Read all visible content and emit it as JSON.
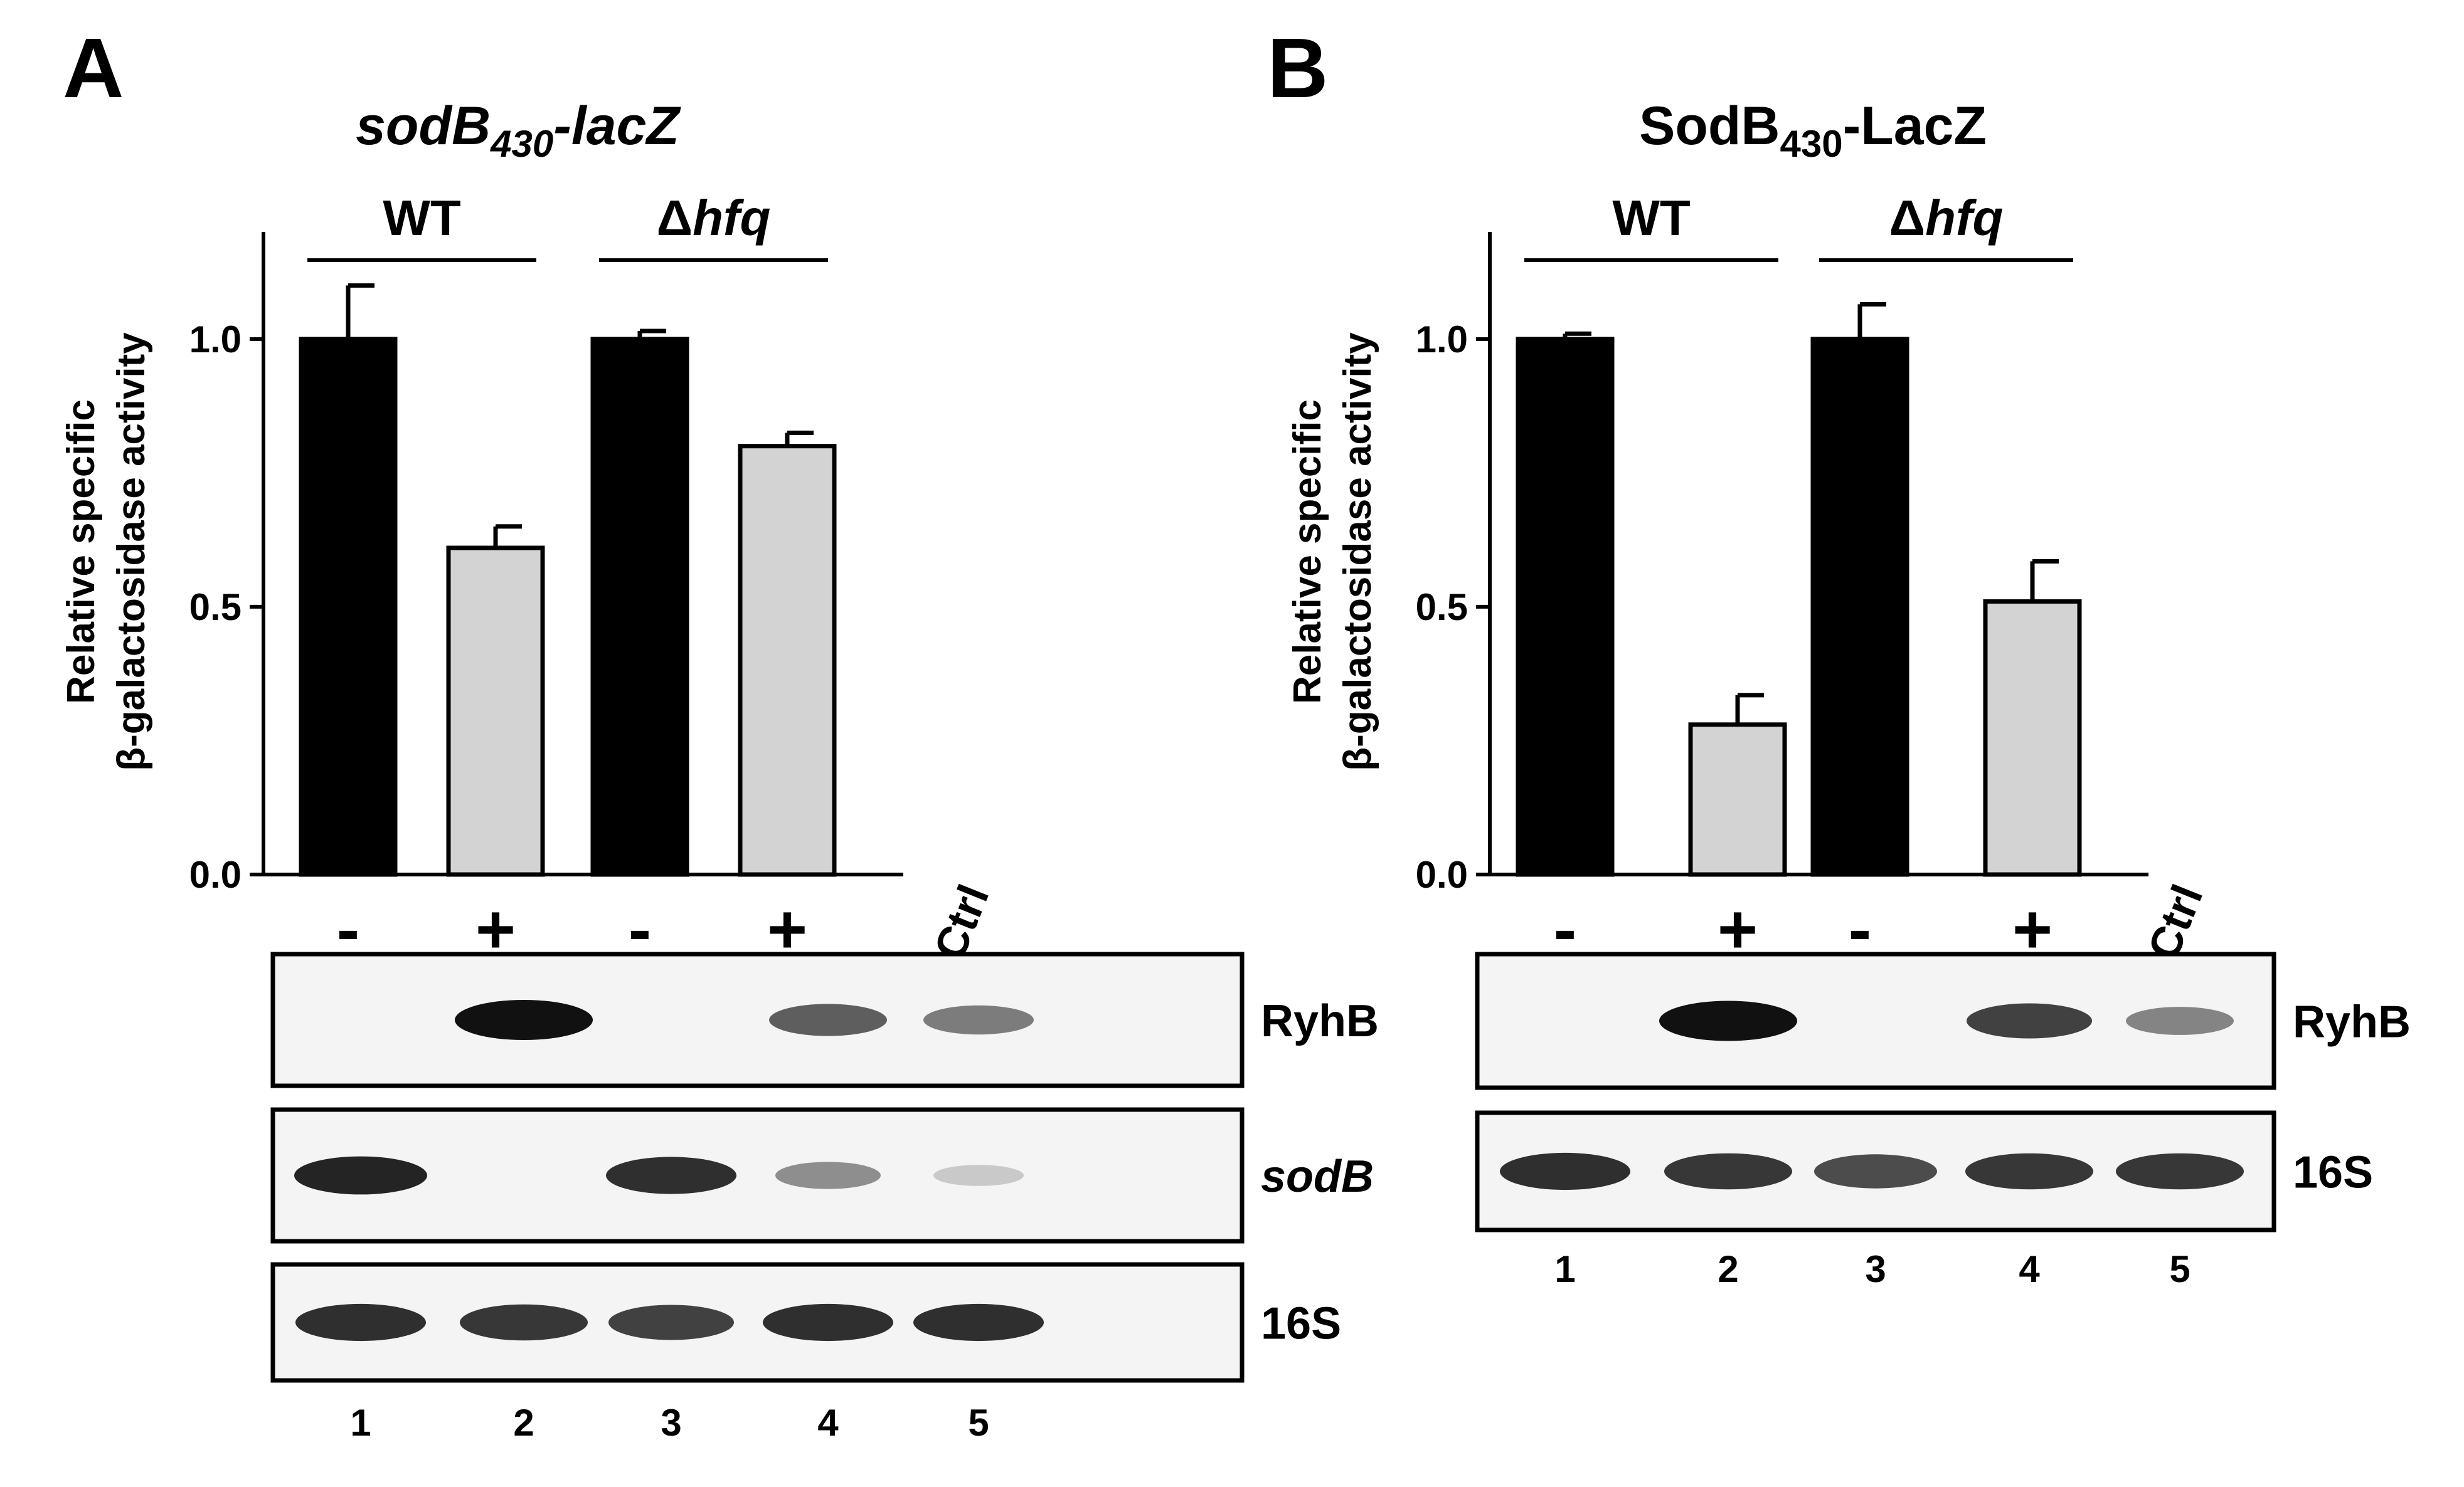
{
  "chart_data": [
    {
      "panel": "A",
      "type": "bar",
      "title": "sodB430-lacZ",
      "title_parts": {
        "main": "sodB",
        "sub": "430",
        "rest": "-lacZ",
        "italic": true
      },
      "ylabel_lines": [
        "Relative specific",
        "β-galactosidase activity"
      ],
      "ylim": [
        0,
        1.2
      ],
      "yticks": [
        "0.0",
        "0.5",
        "1.0"
      ],
      "groups": [
        {
          "label": "WT",
          "label_main": "WT",
          "label_italic": ""
        },
        {
          "label": "Δhfq",
          "label_main": "Δ",
          "label_italic": "hfq"
        }
      ],
      "categories": [
        "-",
        "+",
        "-",
        "+"
      ],
      "ctrl_label": "Ctrl",
      "values": [
        1.0,
        0.61,
        1.0,
        0.8
      ],
      "errors": [
        0.1,
        0.04,
        0.015,
        0.025
      ],
      "bar_colors": [
        "#000000",
        "#d3d3d3",
        "#000000",
        "#d3d3d3"
      ],
      "grid": false,
      "blots": [
        {
          "label": "RyhB",
          "italic": false,
          "intensities": [
            0,
            1.0,
            0,
            0.6,
            0.45
          ]
        },
        {
          "label": "sodB",
          "italic": true,
          "intensities": [
            0.9,
            0,
            0.85,
            0.35,
            0.05
          ]
        },
        {
          "label": "16S",
          "italic": false,
          "intensities": [
            0.85,
            0.8,
            0.75,
            0.85,
            0.85
          ]
        }
      ],
      "lanes": [
        "1",
        "2",
        "3",
        "4",
        "5"
      ]
    },
    {
      "panel": "B",
      "type": "bar",
      "title": "SodB430-LacZ",
      "title_parts": {
        "main": "SodB",
        "sub": "430",
        "rest": "-LacZ",
        "italic": false
      },
      "ylabel_lines": [
        "Relative specific",
        "β-galactosidase activity"
      ],
      "ylim": [
        0,
        1.2
      ],
      "yticks": [
        "0.0",
        "0.5",
        "1.0"
      ],
      "groups": [
        {
          "label": "WT",
          "label_main": "WT",
          "label_italic": ""
        },
        {
          "label": "Δhfq",
          "label_main": "Δ",
          "label_italic": "hfq"
        }
      ],
      "categories": [
        "-",
        "+",
        "-",
        "+"
      ],
      "ctrl_label": "Ctrl",
      "values": [
        1.0,
        0.28,
        1.0,
        0.51
      ],
      "errors": [
        0.01,
        0.055,
        0.065,
        0.075
      ],
      "bar_colors": [
        "#000000",
        "#d3d3d3",
        "#000000",
        "#d3d3d3"
      ],
      "grid": false,
      "blots": [
        {
          "label": "RyhB",
          "italic": false,
          "intensities": [
            0,
            1.0,
            0,
            0.75,
            0.4
          ]
        },
        {
          "label": "16S",
          "italic": false,
          "intensities": [
            0.85,
            0.8,
            0.7,
            0.8,
            0.8
          ]
        }
      ],
      "lanes": [
        "1",
        "2",
        "3",
        "4",
        "5"
      ]
    }
  ]
}
